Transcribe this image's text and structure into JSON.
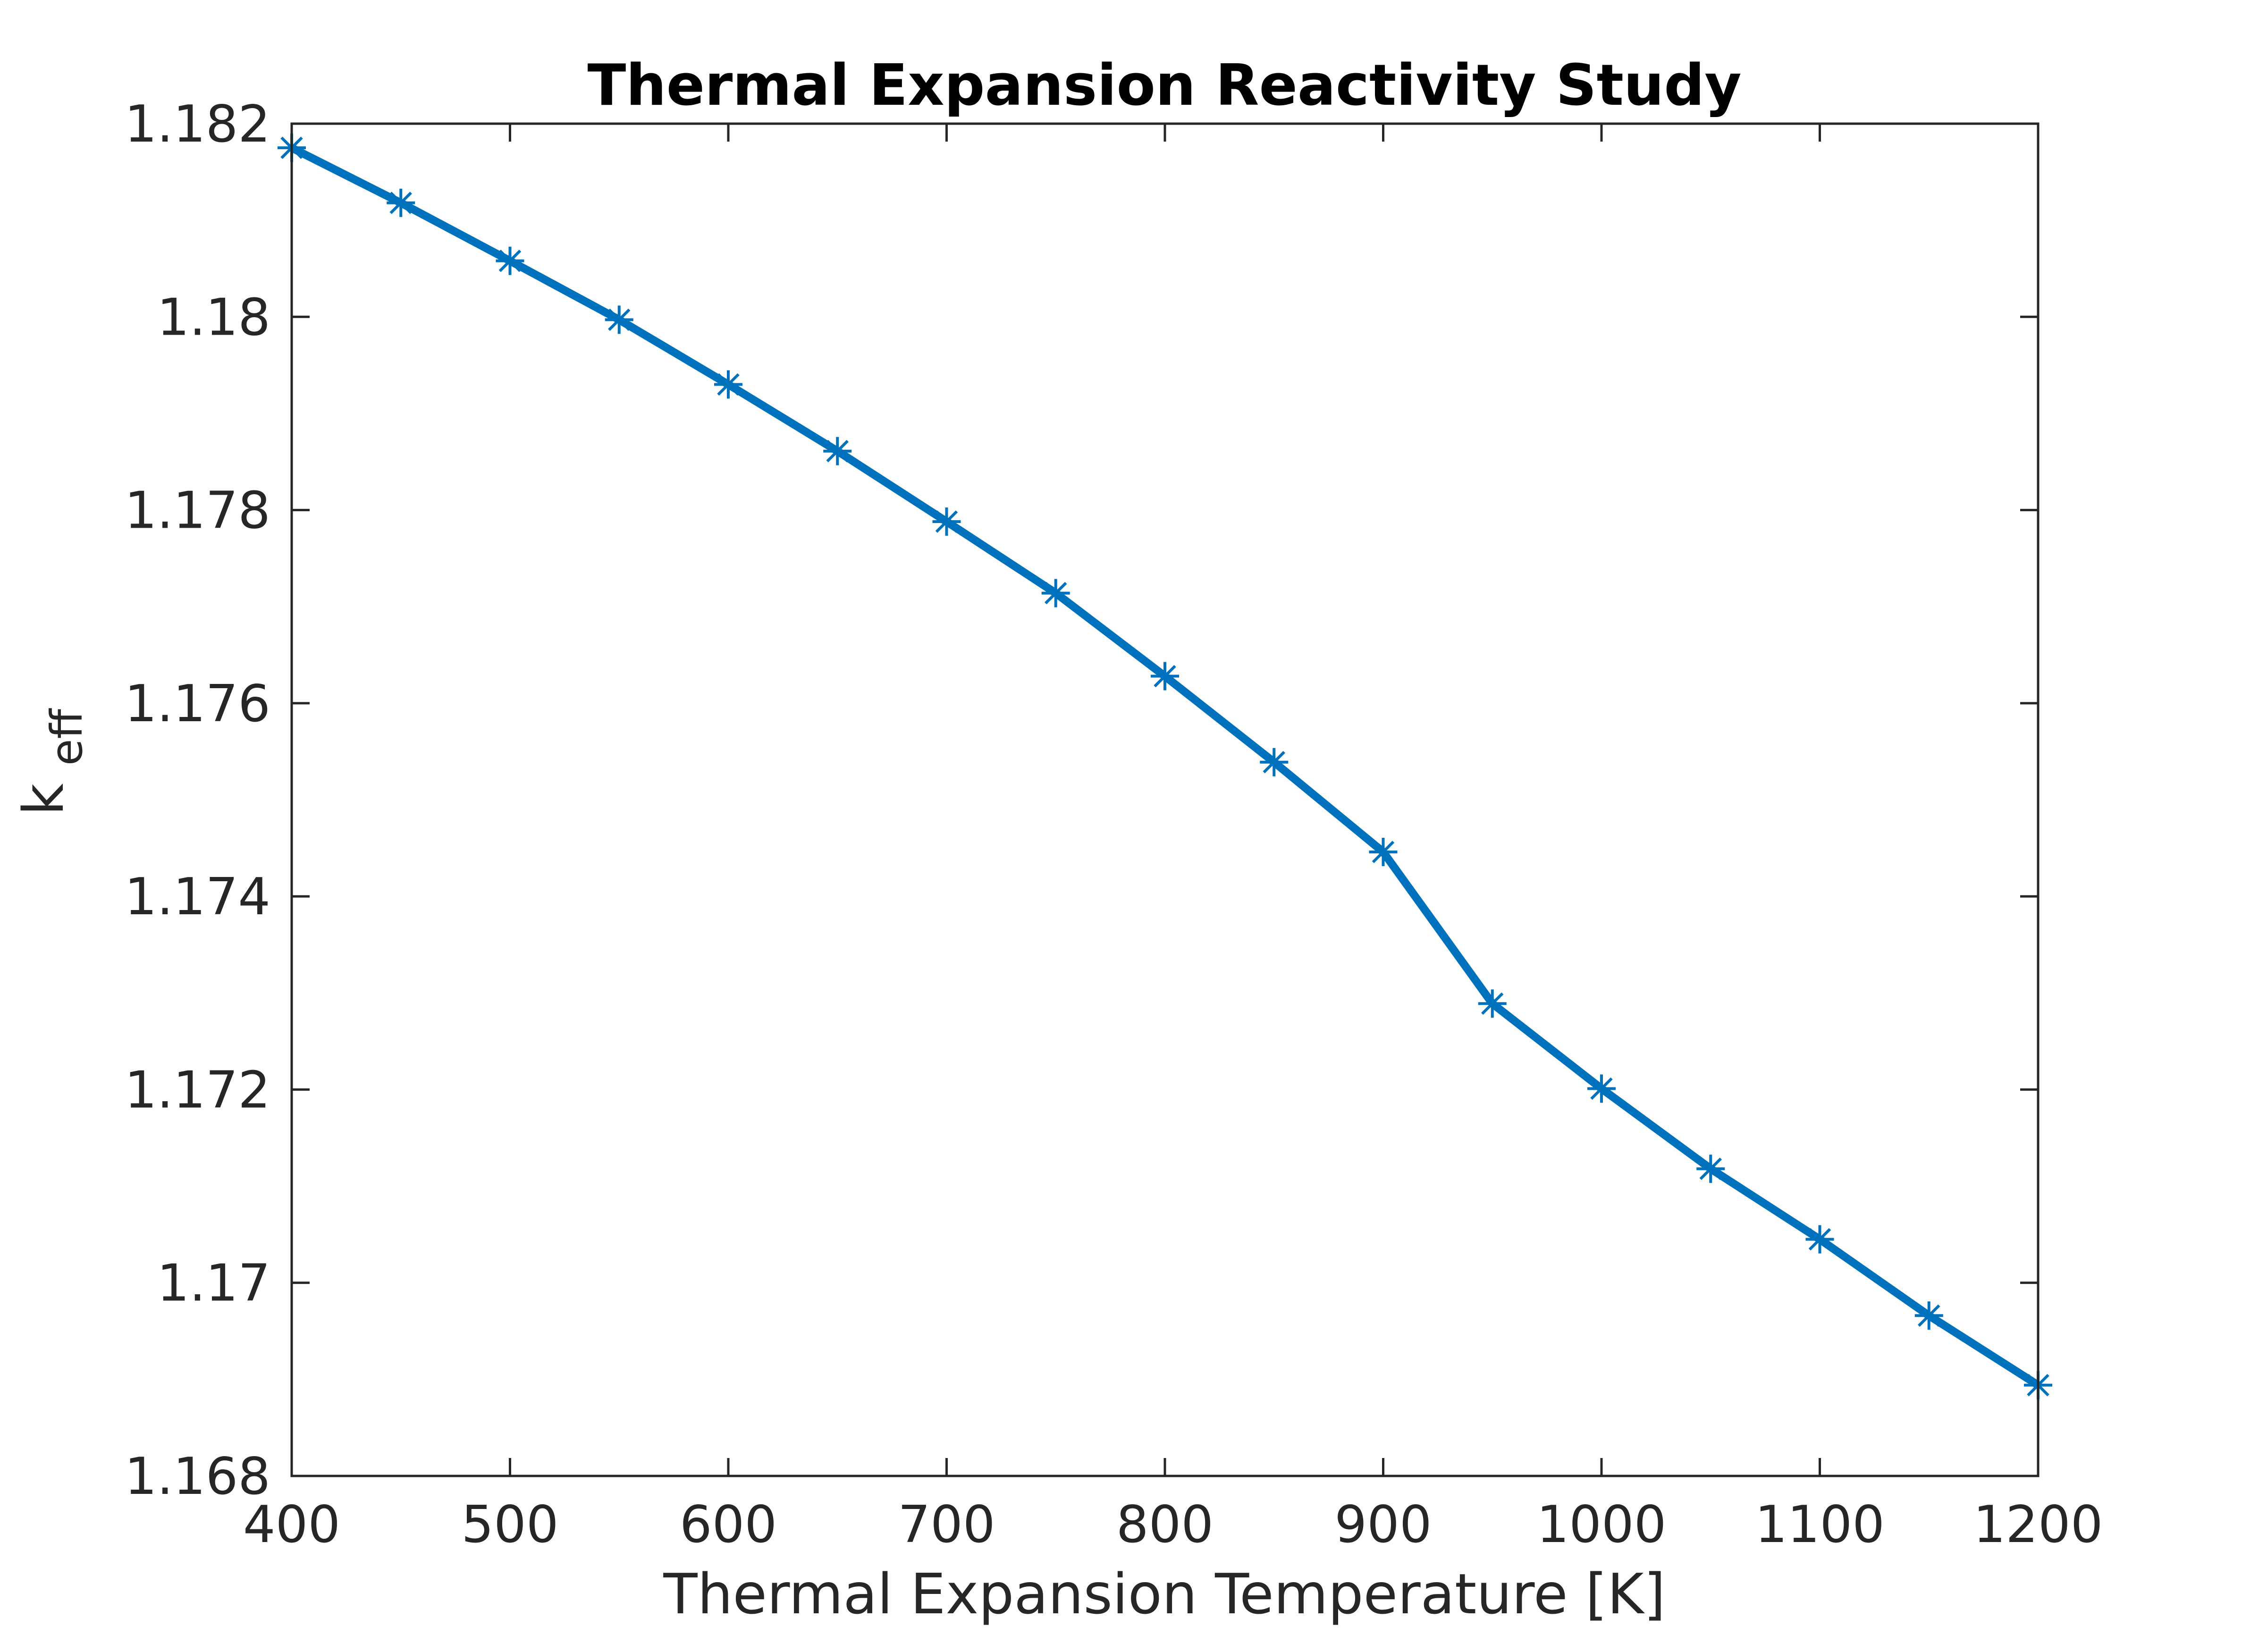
{
  "chart_data": {
    "type": "line",
    "title": "Thermal Expansion Reactivity Study",
    "xlabel": "Thermal Expansion Temperature [K]",
    "ylabel": {
      "base": "k",
      "subscript": "eff"
    },
    "xlim": [
      400,
      1200
    ],
    "ylim": [
      1.168,
      1.182
    ],
    "x_ticks": [
      400,
      500,
      600,
      700,
      800,
      900,
      1000,
      1100,
      1200
    ],
    "x_tick_labels": [
      "400",
      "500",
      "600",
      "700",
      "800",
      "900",
      "1000",
      "1100",
      "1200"
    ],
    "y_ticks": [
      1.168,
      1.17,
      1.172,
      1.174,
      1.176,
      1.178,
      1.18,
      1.182
    ],
    "y_tick_labels": [
      "1.168",
      "1.17",
      "1.172",
      "1.174",
      "1.176",
      "1.178",
      "1.18",
      "1.182"
    ],
    "grid": false,
    "line_color": "#0072BD",
    "marker": "asterisk",
    "series": [
      {
        "x": [
          400,
          450,
          500,
          550,
          600,
          650,
          700,
          750,
          800,
          850,
          900,
          950,
          1000,
          1050,
          1100,
          1150,
          1200
        ],
        "values": [
          1.18175,
          1.18118,
          1.18058,
          1.17997,
          1.1793,
          1.17861,
          1.17788,
          1.17714,
          1.17628,
          1.17539,
          1.17446,
          1.17289,
          1.17201,
          1.17118,
          1.17045,
          1.16966,
          1.16894
        ]
      }
    ]
  }
}
